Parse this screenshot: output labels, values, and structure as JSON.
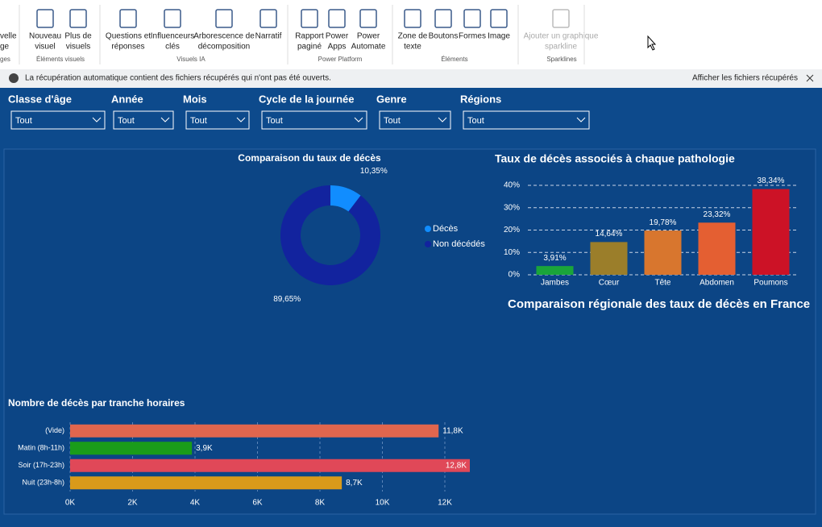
{
  "ribbon": {
    "buttons": [
      {
        "lines": [
          "velle",
          "ge"
        ]
      },
      {
        "lines": [
          "Nouveau",
          "visuel"
        ]
      },
      {
        "lines": [
          "Plus de",
          "visuels"
        ]
      },
      {
        "lines": [
          "Questions et",
          "réponses"
        ]
      },
      {
        "lines": [
          "Influenceurs",
          "clés"
        ]
      },
      {
        "lines": [
          "Arborescence de",
          "décomposition"
        ]
      },
      {
        "lines": [
          "Narratif"
        ]
      },
      {
        "lines": [
          "Rapport",
          "paginé"
        ]
      },
      {
        "lines": [
          "Power",
          "Apps"
        ]
      },
      {
        "lines": [
          "Power",
          "Automate"
        ]
      },
      {
        "lines": [
          "Zone de",
          "texte"
        ]
      },
      {
        "lines": [
          "Boutons"
        ]
      },
      {
        "lines": [
          "Formes"
        ]
      },
      {
        "lines": [
          "Image"
        ]
      },
      {
        "lines": [
          "Ajouter un graphique",
          "sparkline"
        ],
        "disabled": true
      }
    ],
    "groups": [
      "ges",
      "Éléments visuels",
      "Visuels IA",
      "Power Platform",
      "Éléments",
      "Sparklines"
    ]
  },
  "notification": {
    "message": "La récupération automatique contient des fichiers récupérés qui n'ont pas été ouverts.",
    "action": "Afficher les fichiers récupérés"
  },
  "slicers": [
    {
      "title": "Classe d'âge",
      "value": "Tout"
    },
    {
      "title": "Année",
      "value": "Tout"
    },
    {
      "title": "Mois",
      "value": "Tout"
    },
    {
      "title": "Cycle de la journée",
      "value": "Tout"
    },
    {
      "title": "Genre",
      "value": "Tout"
    },
    {
      "title": "Régions",
      "value": "Tout"
    }
  ],
  "map_title": "Comparaison régionale des taux de décès en France",
  "chart_data": [
    {
      "type": "donut",
      "title": "Comparaison du taux de décès",
      "categories": [
        "Décès",
        "Non décédés"
      ],
      "values": [
        10.35,
        89.65
      ],
      "value_labels": [
        "10,35%",
        "89,65%"
      ],
      "colors": [
        "#118dff",
        "#12239e"
      ],
      "legend": "right"
    },
    {
      "type": "bar",
      "title": "Taux de décès associés à chaque pathologie",
      "categories": [
        "Jambes",
        "Cœur",
        "Tête",
        "Abdomen",
        "Poumons"
      ],
      "values": [
        3.91,
        14.64,
        19.78,
        23.32,
        38.34
      ],
      "value_labels": [
        "3,91%",
        "14,64%",
        "19,78%",
        "23,32%",
        "38,34%"
      ],
      "colors": [
        "#1aa53a",
        "#9b7e2a",
        "#d8762e",
        "#e45f32",
        "#cc1226"
      ],
      "ylim": [
        0,
        40
      ],
      "yticks": [
        {
          "value": 0,
          "label": "0%"
        },
        {
          "value": 10,
          "label": "10%"
        },
        {
          "value": 20,
          "label": "20%"
        },
        {
          "value": 30,
          "label": "30%"
        },
        {
          "value": 40,
          "label": "40%"
        }
      ],
      "grid": true
    },
    {
      "type": "hbar",
      "title": "Nombre de décès par tranche horaires",
      "categories": [
        "(Vide)",
        "Matin (8h-11h)",
        "Soir (17h-23h)",
        "Nuit (23h-8h)"
      ],
      "values": [
        11800,
        3900,
        12800,
        8700
      ],
      "value_labels": [
        "11,8K",
        "3,9K",
        "12,8K",
        "8,7K"
      ],
      "colors": [
        "#e0664e",
        "#1a9c1a",
        "#e04858",
        "#d99a1a"
      ],
      "xlim": [
        0,
        12800
      ],
      "xticks": [
        {
          "value": 0,
          "label": "0K"
        },
        {
          "value": 2000,
          "label": "2K"
        },
        {
          "value": 4000,
          "label": "4K"
        },
        {
          "value": 6000,
          "label": "6K"
        },
        {
          "value": 8000,
          "label": "8K"
        },
        {
          "value": 10000,
          "label": "10K"
        },
        {
          "value": 12000,
          "label": "12K"
        }
      ],
      "grid": true
    }
  ]
}
